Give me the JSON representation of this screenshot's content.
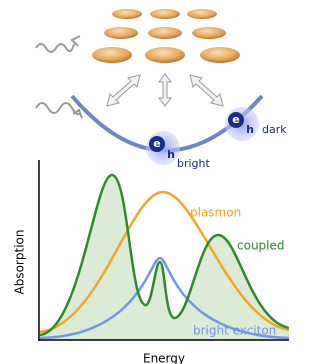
{
  "excitons": [
    {
      "electron": "e",
      "hole": "h",
      "label": "bright"
    },
    {
      "electron": "e",
      "hole": "h",
      "label": "dark"
    }
  ],
  "plot": {
    "y_label": "Absorption",
    "x_label": "Energy",
    "curves": [
      {
        "label": "plasmon"
      },
      {
        "label": "coupled"
      },
      {
        "label": "bright exciton"
      }
    ]
  }
}
